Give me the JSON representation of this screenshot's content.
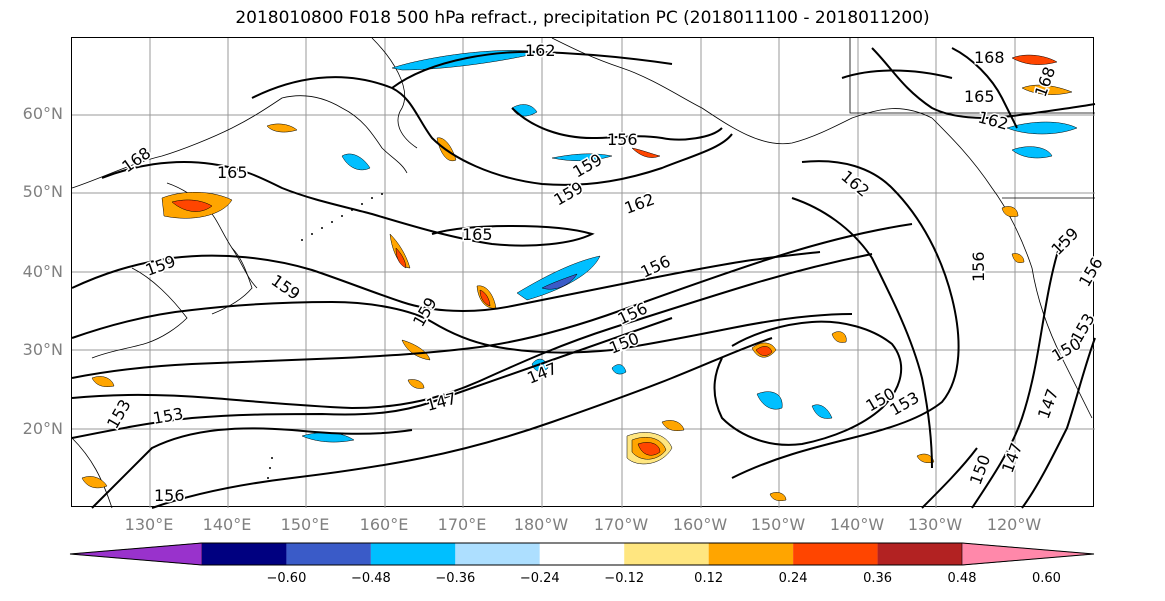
{
  "title": "2018010800 F018 500 hPa refract., precipitation PC (2018011100 - 2018011200)",
  "map": {
    "lat_labels": [
      "60°N",
      "50°N",
      "40°N",
      "30°N",
      "20°N"
    ],
    "lon_labels": [
      "130°E",
      "140°E",
      "150°E",
      "160°E",
      "170°E",
      "180°W",
      "170°W",
      "160°W",
      "150°W",
      "140°W",
      "130°W",
      "120°W"
    ],
    "grid": true,
    "contour_labels": [
      "162",
      "168",
      "165",
      "162",
      "168",
      "156",
      "159",
      "159",
      "162",
      "168",
      "165",
      "165",
      "162",
      "159",
      "156",
      "159",
      "159",
      "156",
      "156",
      "150",
      "147",
      "147",
      "153",
      "153",
      "156",
      "150",
      "153",
      "150",
      "147",
      "147",
      "150",
      "153",
      "156",
      "159"
    ]
  },
  "colorbar": {
    "tick_labels": [
      "−0.60",
      "−0.48",
      "−0.36",
      "−0.24",
      "−0.12",
      "0.12",
      "0.24",
      "0.36",
      "0.48",
      "0.60"
    ],
    "colors": [
      "#9932CC",
      "#000080",
      "#3A5BC8",
      "#00BFFF",
      "#ADDFFF",
      "#FFFFFF",
      "#FFE680",
      "#FFA500",
      "#FF4500",
      "#B22222",
      "#FF88AA"
    ]
  }
}
